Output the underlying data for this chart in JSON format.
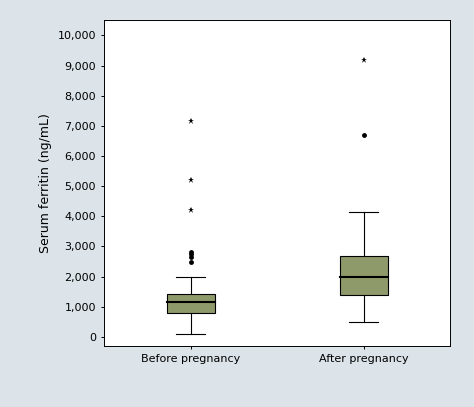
{
  "categories": [
    "Before pregnancy",
    "After pregnancy"
  ],
  "box_data": {
    "Before pregnancy": {
      "whislo": 100,
      "q1": 780,
      "med": 1150,
      "q3": 1430,
      "whishi": 2000,
      "fliers_star": [
        4200,
        5200,
        7150
      ],
      "fliers_dot": [
        2500,
        2650,
        2750,
        2800
      ]
    },
    "After pregnancy": {
      "whislo": 500,
      "q1": 1400,
      "med": 2000,
      "q3": 2700,
      "whishi": 4150,
      "fliers_star": [
        9200
      ],
      "fliers_dot": [
        6700
      ]
    }
  },
  "ylim": [
    -300,
    10500
  ],
  "yticks": [
    0,
    1000,
    2000,
    3000,
    4000,
    5000,
    6000,
    7000,
    8000,
    9000,
    10000
  ],
  "ytick_labels": [
    "0",
    "1,000",
    "2,000",
    "3,000",
    "4,000",
    "5,000",
    "6,000",
    "7,000",
    "8,000",
    "9,000",
    "10,000"
  ],
  "ylabel": "Serum ferritin (ng/mL)",
  "box_color": "#8f9a6b",
  "box_edge_color": "#000000",
  "median_color": "#000000",
  "whisker_color": "#000000",
  "cap_color": "#000000",
  "flier_dot_color": "#000000",
  "flier_star_color": "#000000",
  "plot_bg": "#ffffff",
  "figure_bg": "#dce4ea",
  "box_width": 0.28,
  "positions": [
    1,
    2
  ],
  "xlim": [
    0.5,
    2.5
  ],
  "tick_fontsize": 8,
  "label_fontsize": 9,
  "ylabel_fontsize": 9
}
